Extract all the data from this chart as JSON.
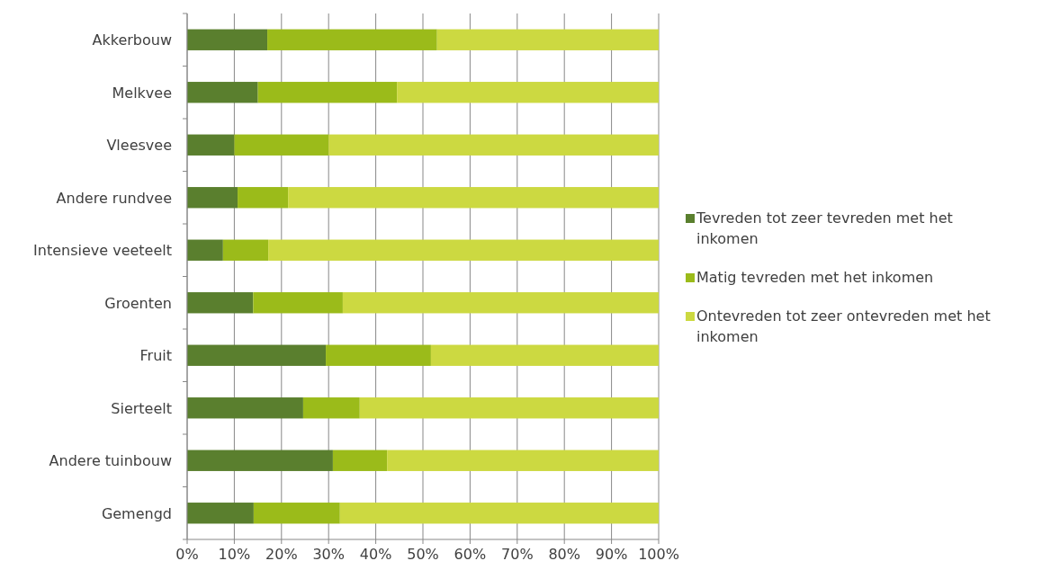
{
  "chart_data": {
    "type": "bar",
    "orientation": "horizontal",
    "stacked": true,
    "categories": [
      "Akkerbouw",
      "Melkvee",
      "Vleesvee",
      "Andere rundvee",
      "Intensieve veeteelt",
      "Groenten",
      "Fruit",
      "Sierteelt",
      "Andere tuinbouw",
      "Gemengd"
    ],
    "series": [
      {
        "name": "Tevreden tot zeer tevreden met het inkomen",
        "color": "#5a7f2e",
        "values": [
          17,
          15,
          10,
          10.7,
          7.6,
          14,
          29.4,
          24.6,
          30.9,
          14.1
        ]
      },
      {
        "name": "Matig tevreden met het inkomen",
        "color": "#9bbb1a",
        "values": [
          36,
          29.5,
          20,
          10.7,
          9.6,
          19,
          22.3,
          12,
          11.5,
          18.3
        ]
      },
      {
        "name": "Ontevreden tot zeer ontevreden met het inkomen",
        "color": "#ccd941",
        "values": [
          47,
          55.5,
          70,
          78.6,
          82.8,
          67,
          48.3,
          63.4,
          57.6,
          67.6
        ]
      }
    ],
    "xlim": [
      0,
      100
    ],
    "xticks": [
      {
        "value": 0,
        "label": "0%"
      },
      {
        "value": 10,
        "label": "10%"
      },
      {
        "value": 20,
        "label": "20%"
      },
      {
        "value": 30,
        "label": "30%"
      },
      {
        "value": 40,
        "label": "40%"
      },
      {
        "value": 50,
        "label": "50%"
      },
      {
        "value": 60,
        "label": "60%"
      },
      {
        "value": 70,
        "label": "70%"
      },
      {
        "value": 80,
        "label": "80%"
      },
      {
        "value": 90,
        "label": "90%"
      },
      {
        "value": 100,
        "label": "100%"
      }
    ],
    "grid": "x",
    "legend": "right"
  }
}
